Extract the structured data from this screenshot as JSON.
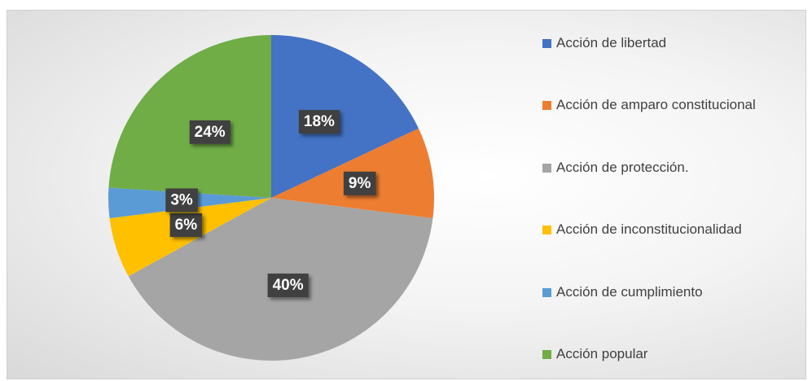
{
  "chart_data": {
    "type": "pie",
    "categories": [
      "Acción de libertad",
      "Acción de amparo constitucional",
      "Acción de protección.",
      "Acción de inconstitucionalidad",
      "Acción de cumplimiento",
      "Acción popular"
    ],
    "values": [
      18,
      9,
      40,
      6,
      3,
      24
    ],
    "value_labels": [
      "18%",
      "9%",
      "40%",
      "6%",
      "3%",
      "24%"
    ],
    "colors": [
      "#4472c4",
      "#ed7d31",
      "#a5a5a5",
      "#ffc000",
      "#5b9bd5",
      "#70ad47"
    ],
    "legend": "right"
  }
}
